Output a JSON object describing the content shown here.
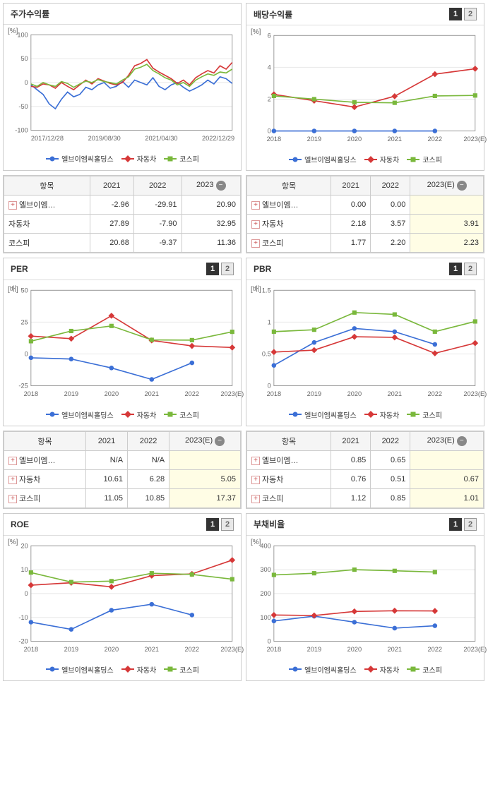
{
  "colors": {
    "series1": "#3b6fd6",
    "series2": "#d63838",
    "series3": "#7ab83c",
    "grid": "#e8e8e8",
    "axis": "#888888",
    "bg": "#ffffff",
    "est_bg": "#fffde5"
  },
  "legend_labels": {
    "s1": "엘브이엠씨홀딩스",
    "s2": "자동차",
    "s3": "코스피"
  },
  "panels": [
    {
      "id": "price_return",
      "title": "주가수익률",
      "y_unit": "[%]",
      "has_pager": false,
      "x_type": "date",
      "x_labels": [
        "2017/12/28",
        "2019/08/30",
        "2021/04/30",
        "2022/12/29"
      ],
      "ylim": [
        -100,
        100
      ],
      "ytick_step": 50,
      "dense": true,
      "series": [
        {
          "key": "s1",
          "values": [
            -5,
            -15,
            -25,
            -45,
            -55,
            -35,
            -20,
            -30,
            -25,
            -10,
            -15,
            -5,
            0,
            -12,
            -8,
            2,
            -10,
            5,
            0,
            -5,
            10,
            -8,
            -15,
            -5,
            0,
            -10,
            -18,
            -12,
            -5,
            5,
            -3,
            12,
            8,
            -2
          ]
        },
        {
          "key": "s2",
          "values": [
            -8,
            -10,
            -3,
            -5,
            -12,
            0,
            -8,
            -15,
            -5,
            5,
            -3,
            8,
            3,
            -2,
            -5,
            0,
            15,
            35,
            40,
            48,
            30,
            22,
            15,
            8,
            -2,
            5,
            -5,
            10,
            18,
            25,
            20,
            35,
            28,
            42
          ]
        },
        {
          "key": "s3",
          "values": [
            -3,
            -8,
            0,
            -5,
            -8,
            2,
            -2,
            -10,
            -3,
            3,
            0,
            6,
            2,
            0,
            -3,
            5,
            12,
            28,
            32,
            38,
            25,
            18,
            10,
            5,
            -5,
            0,
            -8,
            5,
            12,
            18,
            15,
            22,
            20,
            28
          ]
        }
      ]
    },
    {
      "id": "dividend_yield",
      "title": "배당수익률",
      "y_unit": "[%]",
      "has_pager": true,
      "x_type": "year",
      "x_labels": [
        "2018",
        "2019",
        "2020",
        "2021",
        "2022",
        "2023(E)"
      ],
      "ylim": [
        0,
        6
      ],
      "ytick_step": 2,
      "series": [
        {
          "key": "s1",
          "values": [
            0,
            0,
            0,
            0,
            0,
            null
          ]
        },
        {
          "key": "s2",
          "values": [
            2.3,
            1.9,
            1.5,
            2.18,
            3.57,
            3.91
          ]
        },
        {
          "key": "s3",
          "values": [
            2.2,
            2.0,
            1.8,
            1.77,
            2.2,
            2.23
          ]
        }
      ]
    },
    {
      "id": "per",
      "title": "PER",
      "y_unit": "[배]",
      "has_pager": true,
      "x_type": "year",
      "x_labels": [
        "2018",
        "2019",
        "2020",
        "2021",
        "2022",
        "2023(E)"
      ],
      "ylim": [
        -25,
        50
      ],
      "ytick_step": 25,
      "series": [
        {
          "key": "s1",
          "values": [
            -3,
            -4,
            -11,
            -20,
            -7,
            null
          ]
        },
        {
          "key": "s2",
          "values": [
            14,
            12,
            30,
            10.61,
            6.28,
            5.05
          ]
        },
        {
          "key": "s3",
          "values": [
            10,
            18,
            22,
            11.05,
            10.85,
            17.37
          ]
        }
      ]
    },
    {
      "id": "pbr",
      "title": "PBR",
      "y_unit": "[배]",
      "has_pager": true,
      "x_type": "year",
      "x_labels": [
        "2018",
        "2019",
        "2020",
        "2021",
        "2022",
        "2023(E)"
      ],
      "ylim": [
        0,
        1.5
      ],
      "ytick_step": 0.5,
      "series": [
        {
          "key": "s1",
          "values": [
            0.32,
            0.68,
            0.9,
            0.85,
            0.65,
            null
          ]
        },
        {
          "key": "s2",
          "values": [
            0.53,
            0.56,
            0.77,
            0.76,
            0.51,
            0.67
          ]
        },
        {
          "key": "s3",
          "values": [
            0.85,
            0.88,
            1.15,
            1.12,
            0.85,
            1.01
          ]
        }
      ]
    },
    {
      "id": "roe",
      "title": "ROE",
      "y_unit": "[%]",
      "has_pager": true,
      "x_type": "year",
      "x_labels": [
        "2018",
        "2019",
        "2020",
        "2021",
        "2022",
        "2023(E)"
      ],
      "ylim": [
        -20,
        20
      ],
      "ytick_step": 10,
      "series": [
        {
          "key": "s1",
          "values": [
            -12,
            -15,
            -7,
            -4.5,
            -9,
            null
          ]
        },
        {
          "key": "s2",
          "values": [
            3.5,
            4.5,
            2.8,
            7.5,
            8.2,
            14
          ]
        },
        {
          "key": "s3",
          "values": [
            8.8,
            4.8,
            5.2,
            8.5,
            8.0,
            6.0
          ]
        }
      ]
    },
    {
      "id": "debt_ratio",
      "title": "부채비율",
      "y_unit": "[%]",
      "has_pager": true,
      "x_type": "year",
      "x_labels": [
        "2018",
        "2019",
        "2020",
        "2021",
        "2022",
        "2023(E)"
      ],
      "ylim": [
        0,
        400
      ],
      "ytick_step": 100,
      "series": [
        {
          "key": "s1",
          "values": [
            85,
            105,
            80,
            55,
            65,
            null
          ]
        },
        {
          "key": "s2",
          "values": [
            110,
            108,
            125,
            128,
            127,
            null
          ]
        },
        {
          "key": "s3",
          "values": [
            278,
            285,
            300,
            295,
            290,
            null
          ]
        }
      ]
    }
  ],
  "tables": [
    {
      "after_panel": "dividend_yield",
      "side": "left",
      "header_label": "항목",
      "year_cols": [
        "2021",
        "2022",
        "2023"
      ],
      "last_is_est": false,
      "rows": [
        {
          "label": "엘브이엠…",
          "expand": true,
          "cells": [
            "-2.96",
            "-29.91",
            "20.90"
          ]
        },
        {
          "label": "자동차",
          "expand": false,
          "cells": [
            "27.89",
            "-7.90",
            "32.95"
          ]
        },
        {
          "label": "코스피",
          "expand": false,
          "cells": [
            "20.68",
            "-9.37",
            "11.36"
          ]
        }
      ]
    },
    {
      "after_panel": "dividend_yield",
      "side": "right",
      "header_label": "항목",
      "year_cols": [
        "2021",
        "2022",
        "2023(E)"
      ],
      "last_is_est": true,
      "rows": [
        {
          "label": "엘브이엠…",
          "expand": true,
          "cells": [
            "0.00",
            "0.00",
            ""
          ]
        },
        {
          "label": "자동차",
          "expand": true,
          "cells": [
            "2.18",
            "3.57",
            "3.91"
          ]
        },
        {
          "label": "코스피",
          "expand": true,
          "cells": [
            "1.77",
            "2.20",
            "2.23"
          ]
        }
      ]
    },
    {
      "after_panel": "pbr",
      "side": "left",
      "header_label": "항목",
      "year_cols": [
        "2021",
        "2022",
        "2023(E)"
      ],
      "last_is_est": true,
      "rows": [
        {
          "label": "엘브이엠…",
          "expand": true,
          "cells": [
            "N/A",
            "N/A",
            ""
          ]
        },
        {
          "label": "자동차",
          "expand": true,
          "cells": [
            "10.61",
            "6.28",
            "5.05"
          ]
        },
        {
          "label": "코스피",
          "expand": true,
          "cells": [
            "11.05",
            "10.85",
            "17.37"
          ]
        }
      ]
    },
    {
      "after_panel": "pbr",
      "side": "right",
      "header_label": "항목",
      "year_cols": [
        "2021",
        "2022",
        "2023(E)"
      ],
      "last_is_est": true,
      "rows": [
        {
          "label": "엘브이엠…",
          "expand": true,
          "cells": [
            "0.85",
            "0.65",
            ""
          ]
        },
        {
          "label": "자동차",
          "expand": true,
          "cells": [
            "0.76",
            "0.51",
            "0.67"
          ]
        },
        {
          "label": "코스피",
          "expand": true,
          "cells": [
            "1.12",
            "0.85",
            "1.01"
          ]
        }
      ]
    }
  ],
  "pager": {
    "p1": "1",
    "p2": "2"
  },
  "collapse_icon": "−"
}
